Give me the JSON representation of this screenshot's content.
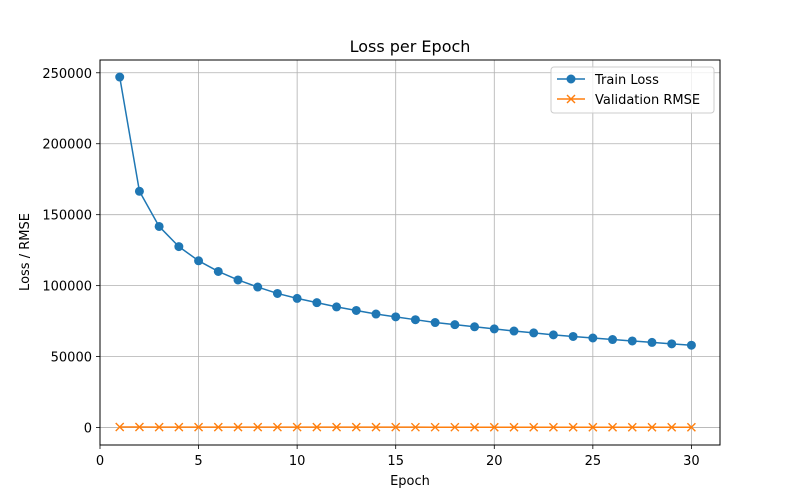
{
  "chart_data": {
    "type": "line",
    "title": "Loss per Epoch",
    "xlabel": "Epoch",
    "ylabel": "Loss / RMSE",
    "xlim": [
      0,
      31.45
    ],
    "ylim": [
      -12300,
      259000
    ],
    "xticks": [
      0,
      5,
      10,
      15,
      20,
      25,
      30
    ],
    "xtick_labels": [
      "0",
      "5",
      "10",
      "15",
      "20",
      "25",
      "30"
    ],
    "yticks": [
      0,
      50000,
      100000,
      150000,
      200000,
      250000
    ],
    "ytick_labels": [
      "0",
      "50000",
      "100000",
      "150000",
      "200000",
      "250000"
    ],
    "grid": true,
    "legend_position": "top-right",
    "x": [
      1,
      2,
      3,
      4,
      5,
      6,
      7,
      8,
      9,
      10,
      11,
      12,
      13,
      14,
      15,
      16,
      17,
      18,
      19,
      20,
      21,
      22,
      23,
      24,
      25,
      26,
      27,
      28,
      29,
      30
    ],
    "series": [
      {
        "name": "Train Loss",
        "color": "#1f77b4",
        "marker": "circle",
        "values": [
          247000,
          166500,
          141700,
          127500,
          117500,
          110000,
          104000,
          99000,
          94500,
          91000,
          88000,
          85000,
          82500,
          80000,
          78000,
          76000,
          74000,
          72500,
          71000,
          69500,
          68000,
          66700,
          65300,
          64200,
          63100,
          62000,
          61000,
          60000,
          59000,
          58000
        ]
      },
      {
        "name": "Validation RMSE",
        "color": "#ff7f0e",
        "marker": "x",
        "values": [
          400,
          350,
          330,
          320,
          310,
          300,
          295,
          290,
          285,
          280,
          275,
          270,
          265,
          262,
          258,
          255,
          252,
          250,
          247,
          245,
          242,
          240,
          238,
          236,
          234,
          232,
          230,
          228,
          226,
          224
        ]
      }
    ]
  }
}
